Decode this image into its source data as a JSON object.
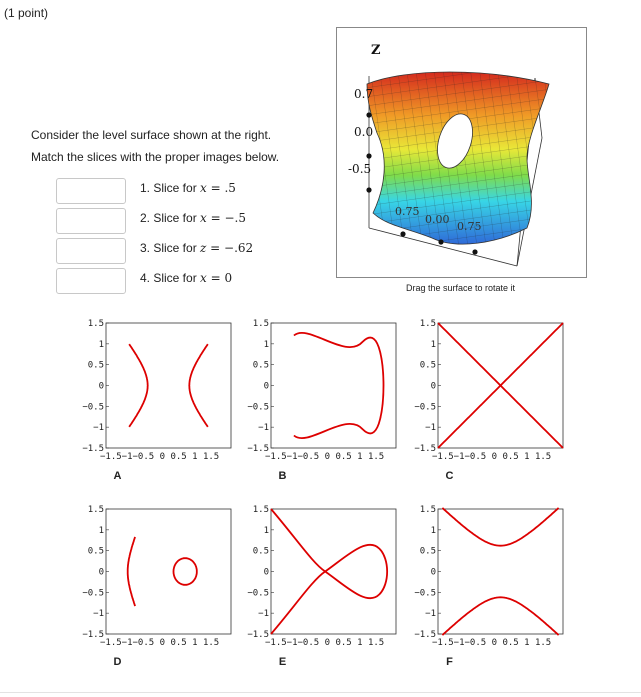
{
  "header": {
    "points": "(1 point)"
  },
  "instructions": {
    "line1": "Consider the level surface shown at the right.",
    "line2": "Match the slices with the proper images below."
  },
  "slices": [
    {
      "num": "1. Slice for ",
      "var": "x",
      "rest": " = .5"
    },
    {
      "num": "2. Slice for ",
      "var": "x",
      "rest": " = −.5"
    },
    {
      "num": "3. Slice for ",
      "var": "z",
      "rest": " = −.62"
    },
    {
      "num": "4. Slice for ",
      "var": "x",
      "rest": " = 0"
    }
  ],
  "answers": [
    "",
    "",
    "",
    ""
  ],
  "surface": {
    "axis_label": "Z",
    "ticks_z": [
      "0.7",
      "0.0",
      "-0.5"
    ],
    "ticks_bottom": [
      "0.75",
      "0.00",
      "0.75"
    ],
    "caption": "Drag the surface to rotate it",
    "colors": {
      "red": "#d42a1e",
      "orange": "#f09a26",
      "yellow": "#e9e838",
      "green": "#7fdc4a",
      "cyan": "#38d6e6",
      "blue": "#2f6ad8"
    }
  },
  "plots": {
    "y_ticks": [
      "1.5",
      "1",
      "0.5",
      "0",
      "−0.5",
      "−1",
      "−1.5"
    ],
    "x_ticks": "−1.5−1−0.5 0 0.5 1 1.5",
    "curve_color": "#dd0000",
    "items": [
      {
        "label": "A"
      },
      {
        "label": "B"
      },
      {
        "label": "C"
      },
      {
        "label": "D"
      },
      {
        "label": "E"
      },
      {
        "label": "F"
      }
    ]
  }
}
